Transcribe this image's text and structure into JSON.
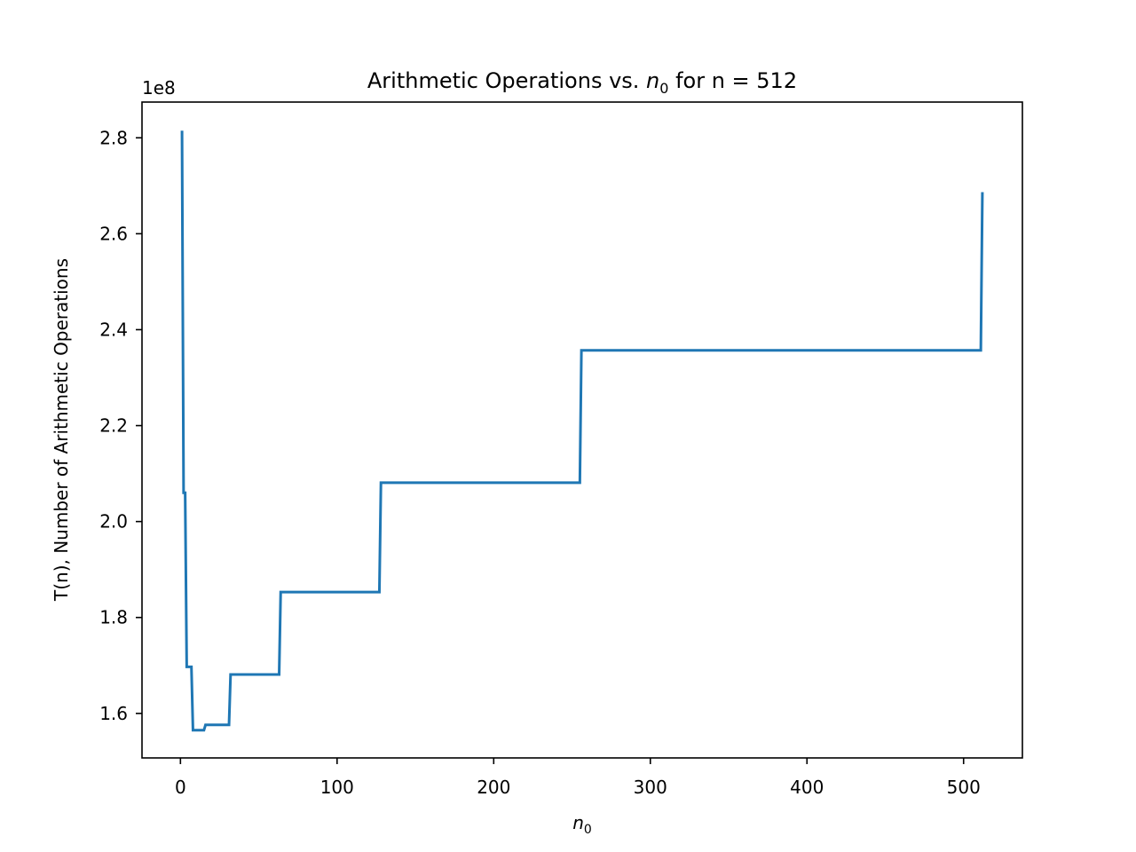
{
  "chart_data": {
    "type": "line",
    "title": {
      "prefix": "Arithmetic Operations vs. ",
      "var": "n",
      "sub": "0",
      "suffix": " for n = 512"
    },
    "xlabel": {
      "var": "n",
      "sub": "0"
    },
    "ylabel": "T(n), Number of Arithmetic Operations",
    "y_offset_label": "1e8",
    "xlim": [
      -24.55,
      537.55
    ],
    "ylim": [
      1.5072,
      2.8745
    ],
    "x_ticks": [
      0,
      100,
      200,
      300,
      400,
      500
    ],
    "x_tick_labels": [
      "0",
      "100",
      "200",
      "300",
      "400",
      "500"
    ],
    "y_ticks": [
      1.6,
      1.8,
      2.0,
      2.2,
      2.4,
      2.6,
      2.8
    ],
    "y_tick_labels": [
      "1.6",
      "1.8",
      "2.0",
      "2.2",
      "2.4",
      "2.6",
      "2.8"
    ],
    "grid": false,
    "legend": "none",
    "series": [
      {
        "color": "#1f77b4",
        "x": [
          1,
          2,
          3,
          4,
          5,
          6,
          7,
          8,
          15,
          16,
          31,
          32,
          63,
          64,
          127,
          128,
          255,
          256,
          511,
          512
        ],
        "y": [
          2.812,
          2.06,
          2.06,
          1.697,
          1.697,
          1.697,
          1.697,
          1.565,
          1.565,
          1.576,
          1.576,
          1.681,
          1.681,
          1.853,
          1.853,
          2.081,
          2.081,
          2.357,
          2.357,
          2.684
        ]
      }
    ]
  }
}
